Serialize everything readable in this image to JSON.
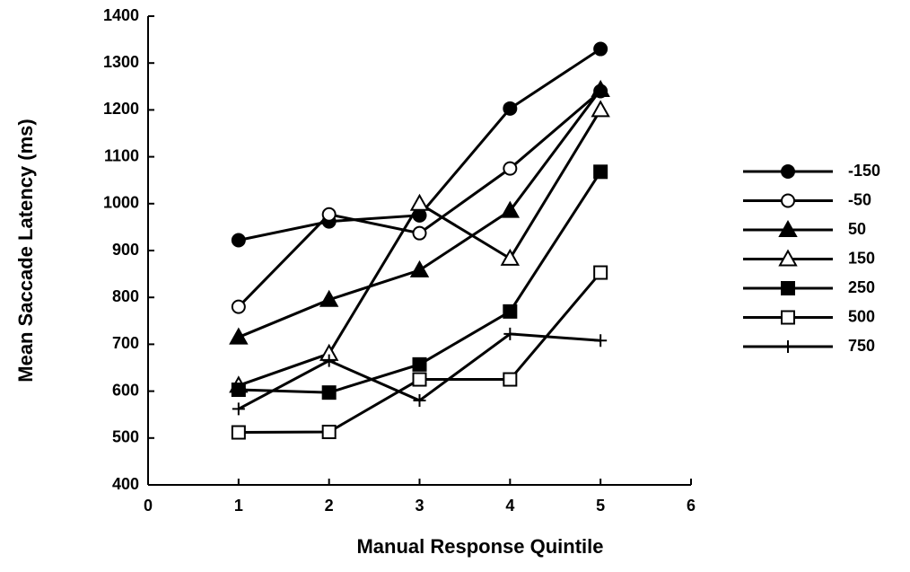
{
  "chart_data": {
    "type": "line",
    "x_label": "Manual Response Quintile",
    "y_label": "Mean Saccade Latency (ms)",
    "x": [
      1,
      2,
      3,
      4,
      5
    ],
    "xlim": [
      0,
      6
    ],
    "xticks": [
      0,
      1,
      2,
      3,
      4,
      5,
      6
    ],
    "ylim": [
      400,
      1400
    ],
    "yticks": [
      400,
      500,
      600,
      700,
      800,
      900,
      1000,
      1100,
      1200,
      1300,
      1400
    ],
    "legend": "right",
    "series": [
      {
        "name": "-150",
        "color": "#000000",
        "marker": "circle",
        "filled": true,
        "values": [
          922,
          962,
          975,
          1203,
          1330
        ]
      },
      {
        "name": "-50",
        "color": "#000000",
        "marker": "circle",
        "filled": false,
        "values": [
          780,
          977,
          937,
          1075,
          1240
        ]
      },
      {
        "name": "50",
        "color": "#000000",
        "marker": "triangle",
        "filled": true,
        "values": [
          715,
          795,
          858,
          985,
          1243
        ]
      },
      {
        "name": "150",
        "color": "#000000",
        "marker": "triangle",
        "filled": false,
        "values": [
          612,
          680,
          1000,
          883,
          1200
        ]
      },
      {
        "name": "250",
        "color": "#000000",
        "marker": "square",
        "filled": true,
        "values": [
          603,
          597,
          657,
          770,
          1068
        ]
      },
      {
        "name": "500",
        "color": "#000000",
        "marker": "square",
        "filled": false,
        "values": [
          512,
          513,
          625,
          625,
          853
        ]
      },
      {
        "name": "750",
        "color": "#000000",
        "marker": "plus",
        "filled": true,
        "values": [
          562,
          665,
          580,
          722,
          708
        ]
      }
    ]
  }
}
